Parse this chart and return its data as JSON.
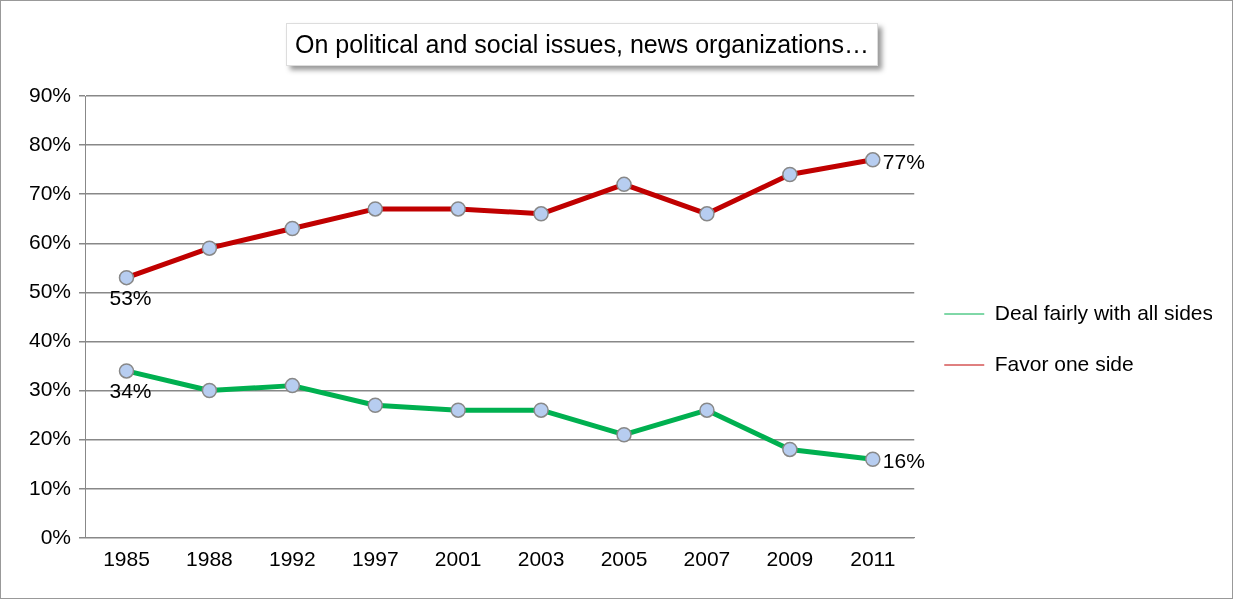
{
  "chart_data": {
    "type": "line",
    "title": "On political and social issues, news organizations…",
    "categories": [
      "1985",
      "1988",
      "1992",
      "1997",
      "2001",
      "2003",
      "2005",
      "2007",
      "2009",
      "2011"
    ],
    "series": [
      {
        "name": "Deal fairly with all sides",
        "color": "#00b050",
        "values": [
          34,
          30,
          31,
          27,
          26,
          26,
          21,
          26,
          18,
          16
        ],
        "value_labels": [
          "34%",
          null,
          null,
          null,
          null,
          null,
          null,
          null,
          null,
          "16%"
        ]
      },
      {
        "name": "Favor one side",
        "color": "#c00000",
        "values": [
          53,
          59,
          63,
          67,
          67,
          66,
          72,
          66,
          74,
          77
        ],
        "value_labels": [
          "53%",
          null,
          null,
          null,
          null,
          null,
          null,
          null,
          null,
          "77%"
        ]
      }
    ],
    "ylim": [
      0,
      90
    ],
    "yticks": [
      {
        "value": 0,
        "label": "0%"
      },
      {
        "value": 10,
        "label": "10%"
      },
      {
        "value": 20,
        "label": "20%"
      },
      {
        "value": 30,
        "label": "30%"
      },
      {
        "value": 40,
        "label": "40%"
      },
      {
        "value": 50,
        "label": "50%"
      },
      {
        "value": 60,
        "label": "60%"
      },
      {
        "value": 70,
        "label": "70%"
      },
      {
        "value": 80,
        "label": "80%"
      },
      {
        "value": 90,
        "label": "90%"
      }
    ],
    "grid": "y",
    "legend": "right",
    "marker": "circle",
    "line_style": "solid"
  }
}
